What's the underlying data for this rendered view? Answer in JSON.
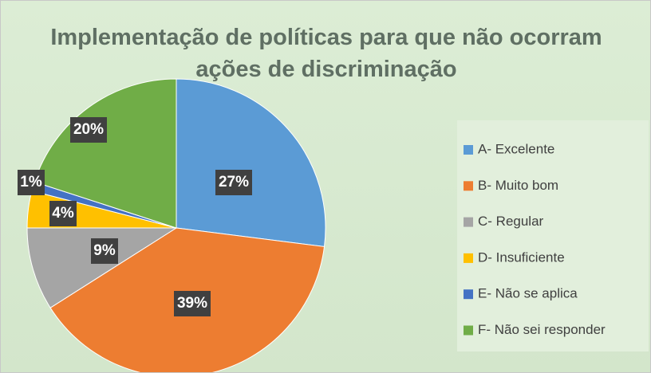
{
  "chart_data": {
    "type": "pie",
    "title": "Implementação de políticas para que não ocorram ações de discriminação",
    "categories": [
      "A- Excelente",
      "B- Muito bom",
      "C- Regular",
      "D- Insuficiente",
      "E- Não se aplica",
      "F- Não sei responder"
    ],
    "values": [
      27,
      39,
      9,
      4,
      1,
      20
    ],
    "value_labels": [
      "27%",
      "39%",
      "9%",
      "4%",
      "1%",
      "20%"
    ],
    "colors": [
      "#5b9bd5",
      "#ed7d31",
      "#a5a5a5",
      "#ffc000",
      "#4472c4",
      "#70ad47"
    ],
    "legend": "right"
  }
}
